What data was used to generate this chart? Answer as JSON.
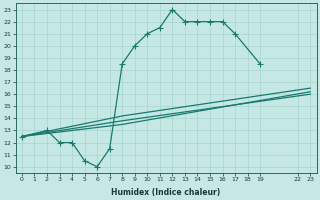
{
  "xlabel": "Humidex (Indice chaleur)",
  "bg_color": "#c5e8e5",
  "grid_color": "#a8d4d0",
  "line_color": "#1a7a6e",
  "xlim": [
    -0.5,
    23.5
  ],
  "ylim": [
    9.5,
    23.5
  ],
  "xtick_vals": [
    0,
    1,
    2,
    3,
    4,
    5,
    6,
    7,
    8,
    9,
    10,
    11,
    12,
    13,
    14,
    15,
    16,
    17,
    18,
    19,
    22,
    23
  ],
  "ytick_vals": [
    10,
    11,
    12,
    13,
    14,
    15,
    16,
    17,
    18,
    19,
    20,
    21,
    22,
    23
  ],
  "curve_x": [
    0,
    2,
    3,
    4,
    5,
    6,
    7,
    8,
    9,
    10,
    11,
    12,
    13,
    14,
    15,
    16,
    17,
    19
  ],
  "curve_y": [
    12.5,
    13,
    12,
    12,
    10.5,
    10,
    11.5,
    18.5,
    20,
    21,
    21.5,
    23,
    22,
    22,
    22,
    22,
    21,
    18.5
  ],
  "trend1_x": [
    0,
    8,
    23
  ],
  "trend1_y": [
    12.5,
    14.2,
    16.5
  ],
  "trend2_x": [
    0,
    8,
    23
  ],
  "trend2_y": [
    12.5,
    13.8,
    16.0
  ],
  "trend3_x": [
    0,
    8,
    23
  ],
  "trend3_y": [
    12.5,
    13.5,
    16.2
  ]
}
